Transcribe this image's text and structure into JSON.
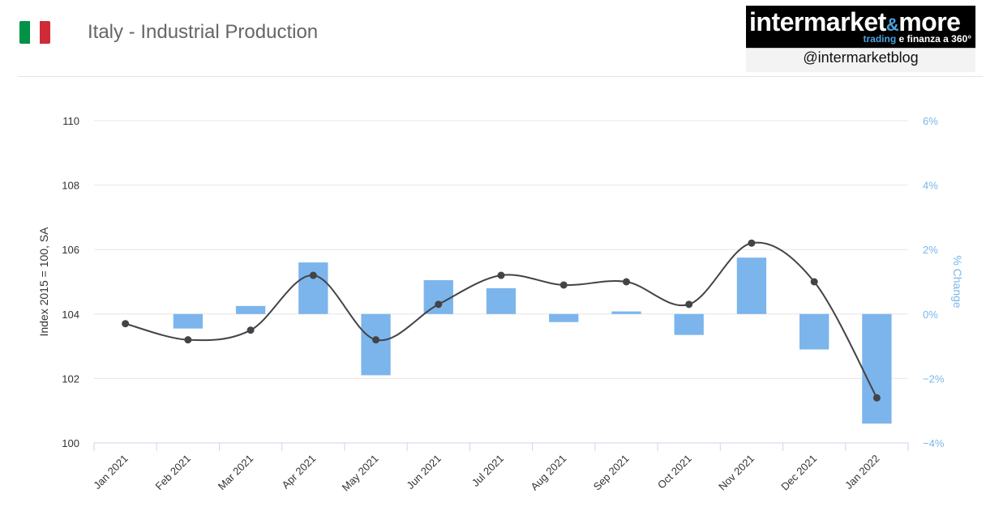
{
  "header": {
    "title": "Italy - Industrial Production",
    "flag_colors": [
      "#009246",
      "#ffffff",
      "#ce2b37"
    ]
  },
  "logo": {
    "main_left": "intermarket",
    "amp": "&",
    "main_right": "more",
    "sub_trading": "trading",
    "sub_rest": " e finanza a 360°",
    "handle": "@intermarketblog"
  },
  "chart_data": {
    "type": "bar",
    "categories": [
      "Jan 2021",
      "Feb 2021",
      "Mar 2021",
      "Apr 2021",
      "May 2021",
      "Jun 2021",
      "Jul 2021",
      "Aug 2021",
      "Sep 2021",
      "Oct 2021",
      "Nov 2021",
      "Dec 2021",
      "Jan 2022"
    ],
    "series": [
      {
        "kind": "bar",
        "axis": "right",
        "color": "#7cb5ec",
        "values": [
          null,
          -0.45,
          0.25,
          1.6,
          -1.9,
          1.05,
          0.8,
          -0.25,
          0.08,
          -0.65,
          1.75,
          -1.1,
          -3.4
        ]
      },
      {
        "kind": "line",
        "axis": "left",
        "color": "#434348",
        "values": [
          103.7,
          103.2,
          103.5,
          105.2,
          103.2,
          104.3,
          105.2,
          104.9,
          105.0,
          104.3,
          106.2,
          105.0,
          101.4
        ]
      }
    ],
    "ylabel": "Index 2015 = 100, SA",
    "y2label": "% Change",
    "ylim": [
      100,
      110
    ],
    "y2lim": [
      -4,
      6
    ],
    "yticks": [
      "100",
      "102",
      "104",
      "106",
      "108",
      "110"
    ],
    "y2ticks": [
      "−4%",
      "−2%",
      "0%",
      "2%",
      "4%",
      "6%"
    ],
    "grid": true,
    "legend": "none"
  }
}
